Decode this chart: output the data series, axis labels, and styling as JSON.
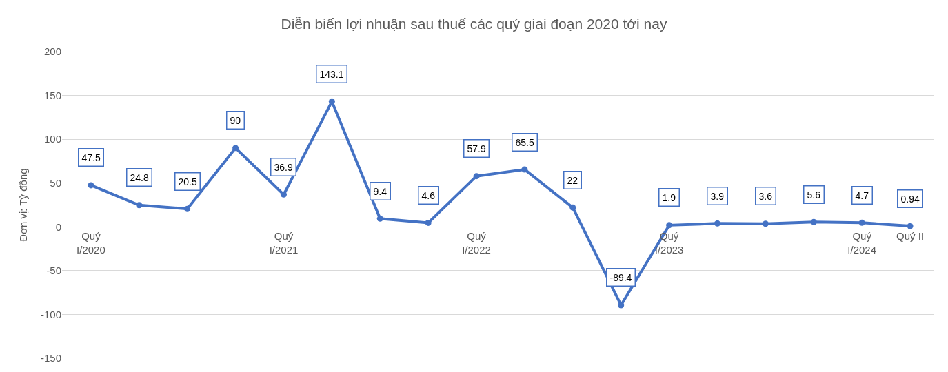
{
  "chart_data": {
    "type": "line",
    "title": "Diễn biến lợi nhuận sau thuế các quý giai đoạn 2020 tới nay",
    "ylabel": "Đơn vị: Tỷ đồng",
    "categories": [
      "Quý\nI/2020",
      null,
      null,
      null,
      "Quý\nI/2021",
      null,
      null,
      null,
      "Quý\nI/2022",
      null,
      null,
      null,
      "Quý\nI/2023",
      null,
      null,
      null,
      "Quý\nI/2024",
      "Quý II"
    ],
    "series": [
      {
        "color": "#4472c4",
        "values": [
          47.5,
          24.8,
          20.5,
          90,
          36.9,
          143.1,
          9.4,
          4.6,
          57.9,
          65.5,
          22,
          -89.4,
          1.9,
          3.9,
          3.6,
          5.6,
          4.7,
          0.94
        ]
      }
    ],
    "ylim": [
      -150,
      200
    ],
    "yticks": [
      -150,
      -100,
      -50,
      0,
      50,
      100,
      150,
      200
    ],
    "grid": "y",
    "legend": false,
    "marker": "circle",
    "line_style": "solid",
    "data_labels": true
  }
}
